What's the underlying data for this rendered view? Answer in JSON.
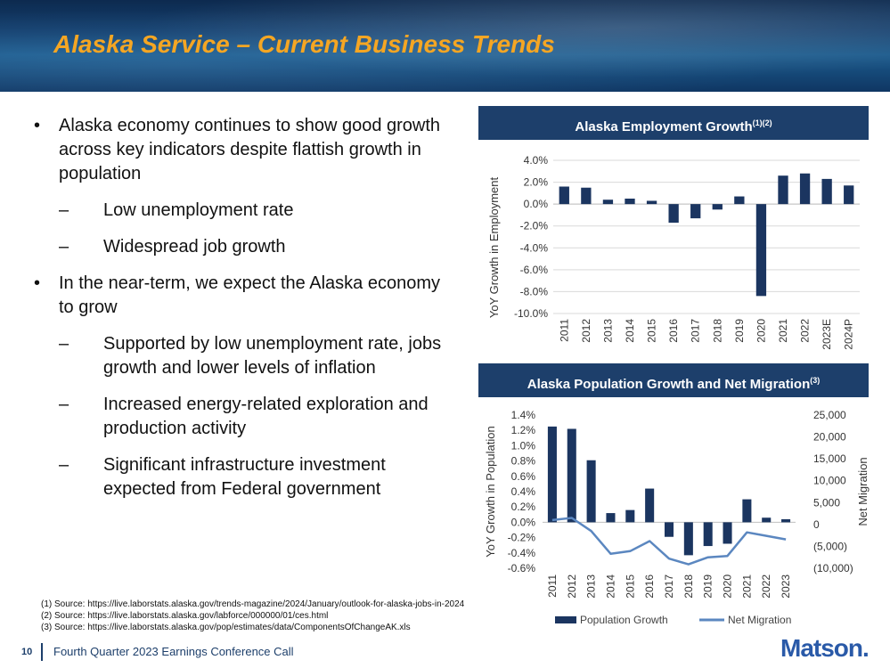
{
  "header": {
    "title": "Alaska Service – Current Business Trends"
  },
  "bullets": [
    {
      "text": "Alaska economy continues to show good growth across key indicators despite flattish growth in population",
      "sub": [
        "Low unemployment rate",
        "Widespread job growth"
      ]
    },
    {
      "text": "In the near-term, we expect the Alaska economy to grow",
      "sub": [
        "Supported by low unemployment rate, jobs growth and lower levels of inflation",
        "Increased energy-related exploration and production activity",
        "Significant infrastructure investment expected from Federal government"
      ]
    }
  ],
  "bullet_symbol": "•",
  "dash_symbol": "–",
  "chart1_header": {
    "text": "Alaska Employment Growth",
    "sup": "(1)(2)"
  },
  "chart2_header": {
    "text": "Alaska Population Growth and Net Migration",
    "sup": "(3)"
  },
  "chart_data": [
    {
      "type": "bar",
      "title": "Alaska Employment Growth(1)(2)",
      "ylabel": "YoY Growth in Employment",
      "categories": [
        "2011",
        "2012",
        "2013",
        "2014",
        "2015",
        "2016",
        "2017",
        "2018",
        "2019",
        "2020",
        "2021",
        "2022",
        "2023E",
        "2024P"
      ],
      "values": [
        1.6,
        1.5,
        0.4,
        0.5,
        0.3,
        -1.7,
        -1.3,
        -0.5,
        0.7,
        -8.4,
        2.6,
        2.8,
        2.3,
        1.7
      ],
      "ylim": [
        -10,
        4
      ],
      "yticks": [
        "4.0%",
        "2.0%",
        "0.0%",
        "-2.0%",
        "-4.0%",
        "-6.0%",
        "-8.0%",
        "-10.0%"
      ],
      "grid": true,
      "color": "#1b3560"
    },
    {
      "type": "bar",
      "title": "Alaska Population Growth and Net Migration(3)",
      "ylabel": "YoY Growth in Population",
      "y2label": "Net Migration",
      "categories": [
        "2011",
        "2012",
        "2013",
        "2014",
        "2015",
        "2016",
        "2017",
        "2018",
        "2019",
        "2020",
        "2021",
        "2022",
        "2023"
      ],
      "series": [
        {
          "name": "Population Growth",
          "type": "bar",
          "axis": "left",
          "color": "#1b3560",
          "values": [
            1.25,
            1.22,
            0.81,
            0.12,
            0.16,
            0.44,
            -0.19,
            -0.43,
            -0.31,
            -0.28,
            0.3,
            0.06,
            0.04
          ]
        },
        {
          "name": "Net Migration",
          "type": "line",
          "axis": "right",
          "color": "#5b87c0",
          "values": [
            1000,
            1500,
            -1500,
            -6700,
            -6100,
            -3800,
            -7800,
            -9100,
            -7500,
            -7200,
            -1800,
            -2600,
            -3400
          ]
        }
      ],
      "ylim": [
        -0.6,
        1.4
      ],
      "y2lim": [
        -10000,
        25000
      ],
      "yticks": [
        "1.4%",
        "1.2%",
        "1.0%",
        "0.8%",
        "0.6%",
        "0.4%",
        "0.2%",
        "0.0%",
        "-0.2%",
        "-0.4%",
        "-0.6%"
      ],
      "y2ticks": [
        "25,000",
        "20,000",
        "15,000",
        "10,000",
        "5,000",
        "0",
        "(5,000)",
        "(10,000)"
      ],
      "legend": "bottom",
      "grid": false
    }
  ],
  "footnotes": [
    "(1)  Source: https://live.laborstats.alaska.gov/trends-magazine/2024/January/outlook-for-alaska-jobs-in-2024",
    "(2)  Source: https://live.laborstats.alaska.gov/labforce/000000/01/ces.html",
    "(3)  Source: https://live.laborstats.alaska.gov/pop/estimates/data/ComponentsOfChangeAK.xls"
  ],
  "footer": {
    "page": "10",
    "text": "Fourth Quarter 2023 Earnings Conference Call",
    "logo": "Matson."
  }
}
